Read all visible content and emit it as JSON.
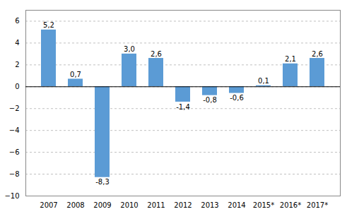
{
  "chart_data": {
    "type": "bar",
    "categories": [
      "2007",
      "2008",
      "2009",
      "2010",
      "2011",
      "2012",
      "2013",
      "2014",
      "2015*",
      "2016*",
      "2017*"
    ],
    "values": [
      5.2,
      0.7,
      -8.3,
      3.0,
      2.6,
      -1.4,
      -0.8,
      -0.6,
      0.1,
      2.1,
      2.6
    ],
    "value_labels": [
      "5,2",
      "0,7",
      "-8,3",
      "3,0",
      "2,6",
      "-1,4",
      "-0,8",
      "-0,6",
      "0,1",
      "2,1",
      "2,6"
    ],
    "color": "#5b9bd5",
    "ylim": [
      -10,
      7
    ],
    "yticks": [
      -10,
      -8,
      -6,
      -4,
      -2,
      0,
      2,
      4,
      6
    ],
    "grid": true,
    "data_labels": true
  }
}
